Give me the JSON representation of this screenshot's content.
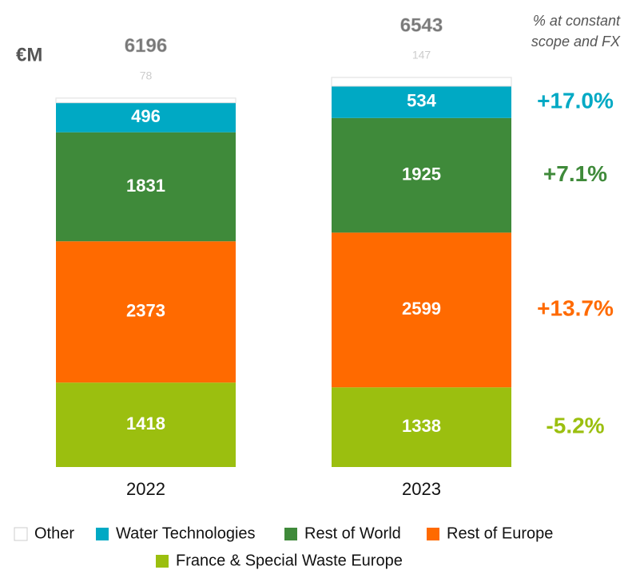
{
  "chart_data": {
    "type": "stacked_bar",
    "unit": "€M",
    "note": [
      "% at constant",
      "scope and FX"
    ],
    "categories": [
      "2022",
      "2023"
    ],
    "totals": [
      6196,
      6543
    ],
    "series": [
      {
        "name": "France & Special Waste Europe",
        "color": "#9bbf0f",
        "values": [
          1418,
          1338
        ],
        "change": "-5.2%"
      },
      {
        "name": "Rest of Europe",
        "color": "#ff6a00",
        "values": [
          2373,
          2599
        ],
        "change": "+13.7%"
      },
      {
        "name": "Rest of World",
        "color": "#3f8a3a",
        "values": [
          1831,
          1925
        ],
        "change": "+7.1%"
      },
      {
        "name": "Water Technologies",
        "color": "#00a9c4",
        "values": [
          496,
          534
        ],
        "change": "+17.0%"
      },
      {
        "name": "Other",
        "color": "#ffffff",
        "values": [
          78,
          147
        ]
      }
    ]
  }
}
